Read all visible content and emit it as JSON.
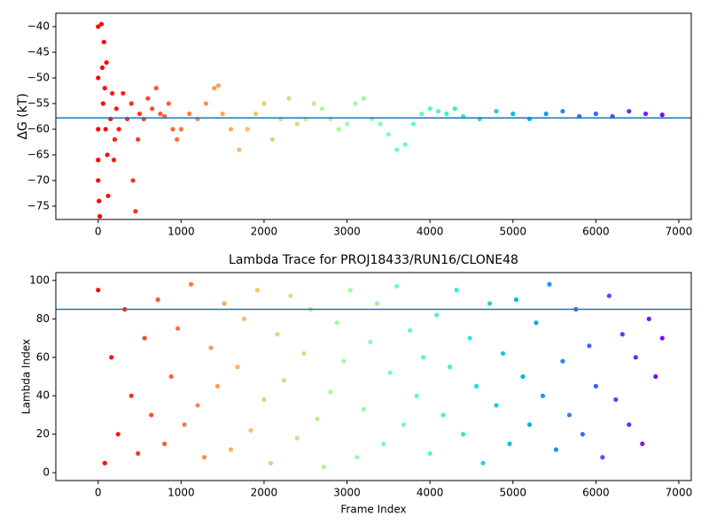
{
  "chart_data": [
    {
      "type": "scatter",
      "ylabel": "ΔG (kT)",
      "colormap": "rainbow_r",
      "hline": -57.8,
      "hline_color": "#1f77b4",
      "xlim": [
        -510,
        7150
      ],
      "ylim": [
        -77.6,
        -37.4
      ],
      "xticks": [
        0,
        1000,
        2000,
        3000,
        4000,
        5000,
        6000,
        7000
      ],
      "yticks": [
        {
          "value": -40,
          "label": "−40"
        },
        {
          "value": -45,
          "label": "−45"
        },
        {
          "value": -50,
          "label": "−50"
        },
        {
          "value": -55,
          "label": "−55"
        },
        {
          "value": -60,
          "label": "−60"
        },
        {
          "value": -65,
          "label": "−65"
        },
        {
          "value": -70,
          "label": "−70"
        },
        {
          "value": -75,
          "label": "−75"
        }
      ],
      "x": [
        0,
        0,
        0,
        0,
        0,
        10,
        20,
        40,
        50,
        60,
        70,
        80,
        90,
        100,
        110,
        120,
        150,
        170,
        190,
        200,
        220,
        250,
        300,
        350,
        400,
        420,
        450,
        480,
        500,
        550,
        600,
        650,
        700,
        750,
        800,
        850,
        900,
        950,
        1000,
        1100,
        1200,
        1300,
        1400,
        1450,
        1500,
        1600,
        1700,
        1800,
        1900,
        2000,
        2100,
        2200,
        2300,
        2400,
        2500,
        2600,
        2700,
        2800,
        2900,
        3000,
        3100,
        3200,
        3300,
        3400,
        3500,
        3600,
        3700,
        3800,
        3900,
        4000,
        4100,
        4200,
        4300,
        4400,
        4600,
        4800,
        5000,
        5200,
        5400,
        5600,
        5800,
        6000,
        6200,
        6400,
        6600,
        6800
      ],
      "values": [
        -40,
        -50,
        -60,
        -66,
        -70,
        -74,
        -77,
        -39.5,
        -48,
        -55,
        -43,
        -52,
        -60,
        -47,
        -65,
        -73,
        -58,
        -53,
        -66,
        -62,
        -56,
        -60,
        -53,
        -58,
        -55,
        -70,
        -76,
        -62,
        -57,
        -58,
        -54,
        -56,
        -52,
        -57,
        -57.5,
        -55,
        -60,
        -62,
        -60,
        -57,
        -58,
        -55,
        -52,
        -51.5,
        -57,
        -60,
        -64,
        -60,
        -57,
        -55,
        -62,
        -58,
        -54,
        -59,
        -58,
        -55,
        -56,
        -58,
        -60,
        -59,
        -55,
        -54,
        -58,
        -59,
        -61,
        -64,
        -63,
        -59,
        -57,
        -56,
        -56.5,
        -57,
        -56,
        -57.5,
        -58,
        -56.5,
        -57,
        -58,
        -57,
        -56.5,
        -57.5,
        -57,
        -57.5,
        -56.5,
        -57,
        -57.2
      ]
    },
    {
      "type": "scatter",
      "title": "Lambda Trace for PROJ18433/RUN16/CLONE48",
      "xlabel": "Frame Index",
      "ylabel": "Lambda Index",
      "colormap": "rainbow_r",
      "hline": 85,
      "hline_color": "#1f77b4",
      "xlim": [
        -510,
        7150
      ],
      "ylim": [
        -4.1,
        104.1
      ],
      "xticks": [
        0,
        1000,
        2000,
        3000,
        4000,
        5000,
        6000,
        7000
      ],
      "yticks": [
        0,
        20,
        40,
        60,
        80,
        100
      ],
      "x": [
        0,
        80,
        160,
        240,
        320,
        400,
        480,
        560,
        640,
        720,
        800,
        880,
        960,
        1040,
        1120,
        1200,
        1280,
        1360,
        1440,
        1520,
        1600,
        1680,
        1760,
        1840,
        1920,
        2000,
        2080,
        2160,
        2240,
        2320,
        2400,
        2480,
        2560,
        2640,
        2720,
        2800,
        2880,
        2960,
        3040,
        3120,
        3200,
        3280,
        3360,
        3440,
        3520,
        3600,
        3680,
        3760,
        3840,
        3920,
        4000,
        4080,
        4160,
        4240,
        4320,
        4400,
        4480,
        4560,
        4640,
        4720,
        4800,
        4880,
        4960,
        5040,
        5120,
        5200,
        5280,
        5360,
        5440,
        5520,
        5600,
        5680,
        5760,
        5840,
        5920,
        6000,
        6080,
        6160,
        6240,
        6320,
        6400,
        6480,
        6560,
        6640,
        6720,
        6800
      ],
      "values": [
        95,
        5,
        60,
        20,
        85,
        40,
        10,
        70,
        30,
        90,
        15,
        50,
        75,
        25,
        98,
        35,
        8,
        65,
        45,
        88,
        12,
        55,
        80,
        22,
        95,
        38,
        5,
        72,
        48,
        92,
        18,
        62,
        85,
        28,
        3,
        42,
        78,
        58,
        95,
        8,
        33,
        68,
        88,
        15,
        52,
        97,
        25,
        74,
        40,
        60,
        10,
        82,
        30,
        55,
        95,
        20,
        70,
        45,
        5,
        88,
        35,
        62,
        15,
        90,
        50,
        25,
        78,
        40,
        98,
        12,
        58,
        30,
        85,
        20,
        66,
        45,
        8,
        92,
        38,
        72,
        25,
        60,
        15,
        80,
        50,
        70
      ]
    }
  ]
}
